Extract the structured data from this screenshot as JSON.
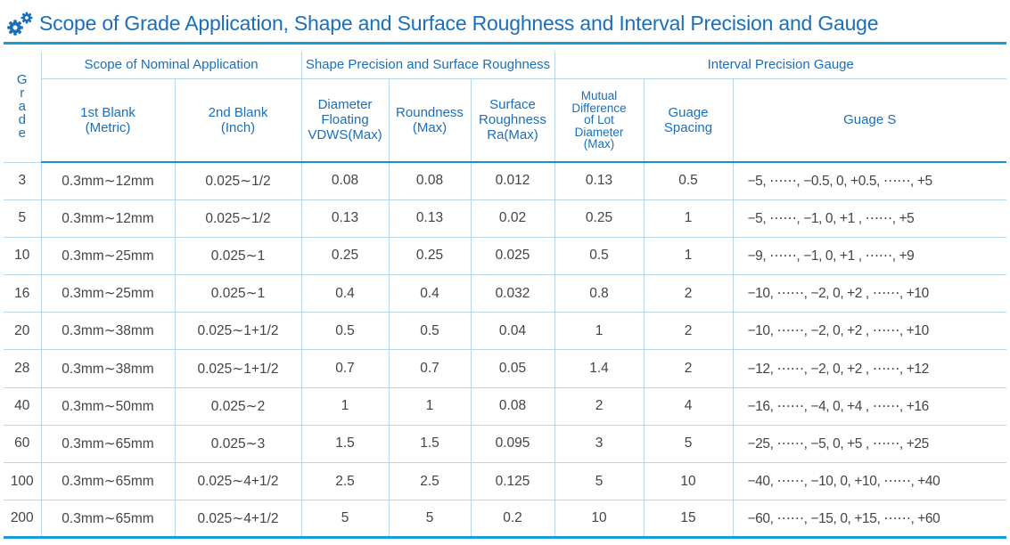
{
  "title": "Scope of Grade Application, Shape and Surface Roughness and Interval Precision and Gauge",
  "icon": "gear-icon",
  "colors": {
    "accent": "#1a9bd7",
    "title": "#1b6fb8",
    "grid": "#b9d7ec"
  },
  "header": {
    "grade_letters": [
      "G",
      "r",
      "a",
      "d",
      "e"
    ],
    "groups": {
      "nominal": "Scope of Nominal Application",
      "shape": "Shape Precision and Surface Roughness",
      "interval": "Interval Precision Gauge"
    },
    "columns": {
      "blank1": [
        "1st Blank",
        "(Metric)"
      ],
      "blank2": [
        "2nd Blank",
        "(Inch)"
      ],
      "diameter": [
        "Diameter",
        "Floating",
        "VDWS(Max)"
      ],
      "roundness": [
        "Roundness",
        "(Max)"
      ],
      "roughness": [
        "Surface",
        "Roughness",
        "Ra(Max)"
      ],
      "lot": [
        "Mutual",
        "Difference",
        "of Lot",
        "Diameter",
        "(Max)"
      ],
      "spacing": [
        "Guage",
        "Spacing"
      ],
      "gauge_s": "Guage S"
    }
  },
  "rows": [
    [
      "3",
      "0.3mm∼12mm",
      "0.025∼1/2",
      "0.08",
      "0.08",
      "0.012",
      "0.13",
      "0.5",
      "−5, ⋯⋯, −0.5, 0, +0.5, ⋯⋯, +5"
    ],
    [
      "5",
      "0.3mm∼12mm",
      "0.025∼1/2",
      "0.13",
      "0.13",
      "0.02",
      "0.25",
      "1",
      "−5, ⋯⋯, −1, 0, +1  , ⋯⋯, +5"
    ],
    [
      "10",
      "0.3mm∼25mm",
      "0.025∼1",
      "0.25",
      "0.25",
      "0.025",
      "0.5",
      "1",
      "−9, ⋯⋯, −1, 0, +1  , ⋯⋯, +9"
    ],
    [
      "16",
      "0.3mm∼25mm",
      "0.025∼1",
      "0.4",
      "0.4",
      "0.032",
      "0.8",
      "2",
      "−10, ⋯⋯, −2, 0, +2  , ⋯⋯, +10"
    ],
    [
      "20",
      "0.3mm∼38mm",
      "0.025∼1+1/2",
      "0.5",
      "0.5",
      "0.04",
      "1",
      "2",
      "−10, ⋯⋯, −2, 0, +2  , ⋯⋯, +10"
    ],
    [
      "28",
      "0.3mm∼38mm",
      "0.025∼1+1/2",
      "0.7",
      "0.7",
      "0.05",
      "1.4",
      "2",
      "−12, ⋯⋯, −2, 0, +2  , ⋯⋯, +12"
    ],
    [
      "40",
      "0.3mm∼50mm",
      "0.025∼2",
      "1",
      "1",
      "0.08",
      "2",
      "4",
      "−16, ⋯⋯, −4, 0, +4  , ⋯⋯, +16"
    ],
    [
      "60",
      "0.3mm∼65mm",
      "0.025∼3",
      "1.5",
      "1.5",
      "0.095",
      "3",
      "5",
      "−25, ⋯⋯, −5, 0, +5  , ⋯⋯, +25"
    ],
    [
      "100",
      "0.3mm∼65mm",
      "0.025∼4+1/2",
      "2.5",
      "2.5",
      "0.125",
      "5",
      "10",
      "−40, ⋯⋯, −10, 0, +10, ⋯⋯, +40"
    ],
    [
      "200",
      "0.3mm∼65mm",
      "0.025∼4+1/2",
      "5",
      "5",
      "0.2",
      "10",
      "15",
      "−60, ⋯⋯, −15, 0, +15, ⋯⋯, +60"
    ]
  ]
}
